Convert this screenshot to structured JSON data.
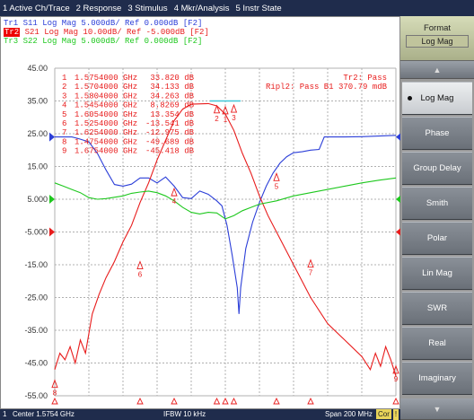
{
  "menu": [
    "1 Active Ch/Trace",
    "2 Response",
    "3 Stimulus",
    "4 Mkr/Analysis",
    "5 Instr State"
  ],
  "traces": [
    {
      "id": "Tr1",
      "label": "Tr1  S11  Log Mag  5.000dB/  Ref  0.000dB  [F2]",
      "color": "#2b3ed8"
    },
    {
      "id": "Tr2",
      "label": "S21  Log Mag  10.00dB/  Ref  -5.000dB  [F2]",
      "tag": "Tr2",
      "color": "#e81c1c"
    },
    {
      "id": "Tr3",
      "label": "Tr3  S22  Log Mag  5.000dB/  Ref  0.000dB  [F2]",
      "color": "#1ec81e"
    }
  ],
  "status_right": {
    "line1": "Tr2: Pass",
    "line2": "Ripl2: Pass B1  370.79 mdB"
  },
  "marker_table": [
    {
      "n": "1",
      "freq": "1.5754000 GHz",
      "val": "33.820 dB"
    },
    {
      "n": "2",
      "freq": "1.5704000 GHz",
      "val": "34.133 dB"
    },
    {
      "n": "3",
      "freq": "1.5804000 GHz",
      "val": "34.263 dB"
    },
    {
      "n": "4",
      "freq": "1.5454000 GHz",
      "val": "8.8269 dB"
    },
    {
      "n": "5",
      "freq": "1.6054000 GHz",
      "val": "13.354 dB"
    },
    {
      "n": "6",
      "freq": "1.5254000 GHz",
      "val": "-13.541 dB"
    },
    {
      "n": "7",
      "freq": "1.6254000 GHz",
      "val": "-12.975 dB"
    },
    {
      "n": "8",
      "freq": "1.4754000 GHz",
      "val": "-49.689 dB"
    },
    {
      "n": "9",
      "freq": "1.6754000 GHz",
      "val": "-45.418 dB"
    }
  ],
  "chart_data": {
    "type": "line",
    "x_range_mhz": [
      1475.4,
      1675.4
    ],
    "ylim": [
      -55,
      45
    ],
    "yticks": [
      "45.00",
      "35.00",
      "25.00",
      "15.00",
      "5.000",
      "-5.000",
      "-15.00",
      "-25.00",
      "-35.00",
      "-45.00",
      "-55.00"
    ],
    "grid": true,
    "series": [
      {
        "name": "S11",
        "color": "#2b3ed8",
        "points": [
          [
            0,
            24
          ],
          [
            5,
            24
          ],
          [
            10,
            24
          ],
          [
            14,
            23.5
          ],
          [
            20,
            22.5
          ],
          [
            25,
            19
          ],
          [
            30,
            14
          ],
          [
            35,
            9.5
          ],
          [
            40,
            9
          ],
          [
            45,
            9.6
          ],
          [
            50,
            11.5
          ],
          [
            55,
            11.5
          ],
          [
            60,
            10
          ],
          [
            65,
            11.8
          ],
          [
            70,
            9
          ],
          [
            75,
            5.5
          ],
          [
            80,
            5.2
          ],
          [
            85,
            7.5
          ],
          [
            90,
            6.5
          ],
          [
            95,
            4.5
          ],
          [
            98,
            3
          ],
          [
            101,
            -3
          ],
          [
            104,
            -12
          ],
          [
            107,
            -22
          ],
          [
            108,
            -30
          ],
          [
            109,
            -22
          ],
          [
            112,
            -10
          ],
          [
            116,
            -2
          ],
          [
            120,
            4
          ],
          [
            124,
            9
          ],
          [
            128,
            13
          ],
          [
            132,
            16
          ],
          [
            136,
            18
          ],
          [
            140,
            19.2
          ],
          [
            145,
            19.5
          ],
          [
            150,
            20
          ],
          [
            155,
            20.2
          ],
          [
            158,
            24
          ],
          [
            163,
            24
          ],
          [
            170,
            24
          ],
          [
            180,
            24.1
          ],
          [
            190,
            24.3
          ],
          [
            200,
            24.5
          ]
        ]
      },
      {
        "name": "S21",
        "color": "#e81c1c",
        "points": [
          [
            0,
            -47
          ],
          [
            3,
            -42
          ],
          [
            6,
            -44
          ],
          [
            9,
            -40
          ],
          [
            12,
            -45
          ],
          [
            15,
            -38
          ],
          [
            18,
            -42
          ],
          [
            22,
            -30
          ],
          [
            26,
            -24
          ],
          [
            30,
            -19
          ],
          [
            35,
            -14
          ],
          [
            40,
            -8
          ],
          [
            45,
            -3
          ],
          [
            50,
            4
          ],
          [
            55,
            10
          ],
          [
            60,
            17
          ],
          [
            65,
            23
          ],
          [
            70,
            29
          ],
          [
            75,
            32.5
          ],
          [
            80,
            34
          ],
          [
            90,
            34.2
          ],
          [
            95,
            33.5
          ],
          [
            100,
            31
          ],
          [
            105,
            26
          ],
          [
            110,
            19
          ],
          [
            115,
            13
          ],
          [
            120,
            6
          ],
          [
            125,
            0
          ],
          [
            130,
            -5
          ],
          [
            135,
            -10
          ],
          [
            140,
            -15
          ],
          [
            145,
            -20
          ],
          [
            150,
            -25
          ],
          [
            160,
            -33
          ],
          [
            170,
            -38
          ],
          [
            180,
            -43
          ],
          [
            185,
            -47
          ],
          [
            188,
            -42
          ],
          [
            191,
            -46
          ],
          [
            194,
            -40
          ],
          [
            197,
            -44
          ],
          [
            200,
            -49
          ]
        ]
      },
      {
        "name": "S22",
        "color": "#1ec81e",
        "points": [
          [
            0,
            10
          ],
          [
            5,
            9
          ],
          [
            10,
            8
          ],
          [
            15,
            7
          ],
          [
            20,
            5.5
          ],
          [
            25,
            5
          ],
          [
            30,
            5.2
          ],
          [
            35,
            5.6
          ],
          [
            40,
            6
          ],
          [
            45,
            6.8
          ],
          [
            50,
            7.2
          ],
          [
            55,
            7.5
          ],
          [
            60,
            7
          ],
          [
            65,
            6
          ],
          [
            70,
            4.5
          ],
          [
            75,
            2.5
          ],
          [
            80,
            1
          ],
          [
            85,
            0.5
          ],
          [
            90,
            1
          ],
          [
            95,
            0.8
          ],
          [
            100,
            -1
          ],
          [
            105,
            0
          ],
          [
            110,
            1.5
          ],
          [
            115,
            2.5
          ],
          [
            120,
            3.5
          ],
          [
            130,
            4.5
          ],
          [
            140,
            6
          ],
          [
            150,
            7
          ],
          [
            160,
            8
          ],
          [
            170,
            9
          ],
          [
            180,
            10
          ],
          [
            190,
            10.8
          ],
          [
            200,
            11.5
          ]
        ]
      }
    ],
    "markers": [
      {
        "n": "1",
        "x": 100,
        "y": 33.8
      },
      {
        "n": "2",
        "x": 95,
        "y": 34.1
      },
      {
        "n": "3",
        "x": 105,
        "y": 34.3
      },
      {
        "n": "4",
        "x": 70,
        "y": 8.8
      },
      {
        "n": "5",
        "x": 130,
        "y": 13.4
      },
      {
        "n": "6",
        "x": 50,
        "y": -13.5
      },
      {
        "n": "7",
        "x": 150,
        "y": -13.0
      },
      {
        "n": "8",
        "x": 0,
        "y": -49.7
      },
      {
        "n": "9",
        "x": 200,
        "y": -45.4
      }
    ]
  },
  "sidebar": {
    "title": "Format",
    "value": "Log Mag",
    "buttons": [
      "Log Mag",
      "Phase",
      "Group Delay",
      "Smith",
      "Polar",
      "Lin Mag",
      "SWR",
      "Real",
      "Imaginary"
    ]
  },
  "status": {
    "ch": "1",
    "center": "Center 1.5754 GHz",
    "ifbw": "IFBW 10 kHz",
    "span": "Span 200 MHz",
    "cor": "Cor",
    "ex": "!"
  }
}
